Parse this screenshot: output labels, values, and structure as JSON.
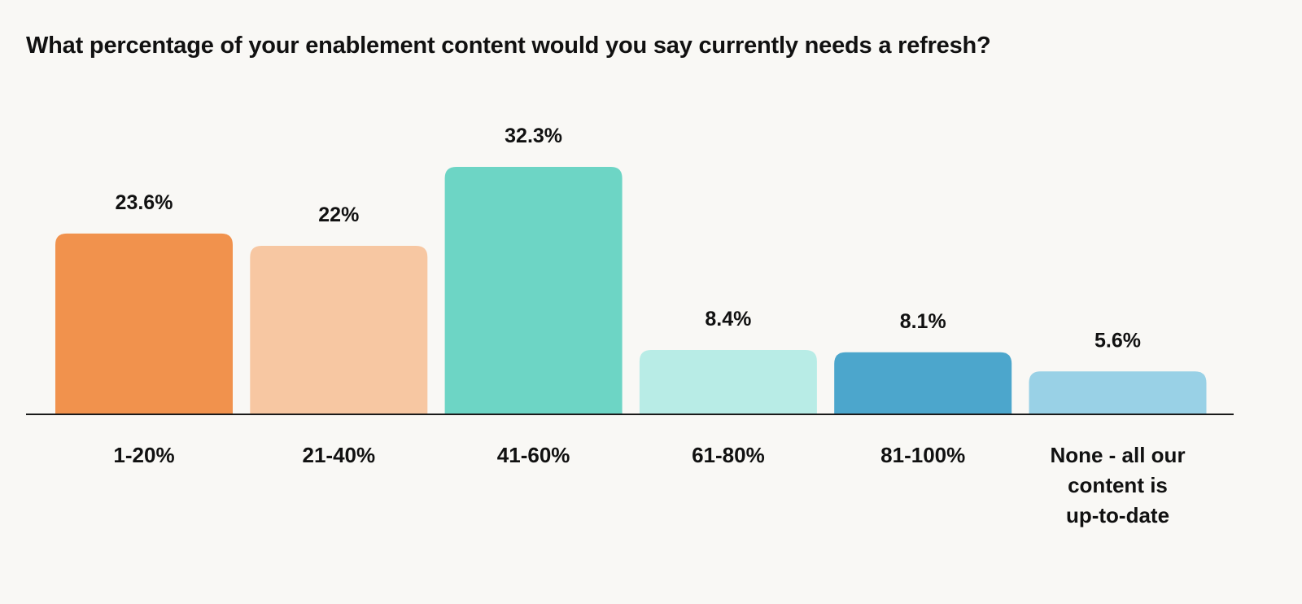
{
  "chart_data": {
    "type": "bar",
    "title": "What percentage of your enablement content would you say currently needs a refresh?",
    "categories": [
      "1-20%",
      "21-40%",
      "41-60%",
      "61-80%",
      "81-100%",
      "None - all our content is up-to-date"
    ],
    "category_lines": [
      [
        "1-20%"
      ],
      [
        "21-40%"
      ],
      [
        "41-60%"
      ],
      [
        "61-80%"
      ],
      [
        "81-100%"
      ],
      [
        "None - all our",
        "content is",
        "up-to-date"
      ]
    ],
    "values": [
      23.6,
      22,
      32.3,
      8.4,
      8.1,
      5.6
    ],
    "value_labels": [
      "23.6%",
      "22%",
      "32.3%",
      "8.4%",
      "8.1%",
      "5.6%"
    ],
    "bar_colors": [
      "#f1924d",
      "#f7c7a2",
      "#6dd5c5",
      "#b8ece6",
      "#4ca6cc",
      "#99d1e6"
    ],
    "ylim": [
      0,
      32.3
    ],
    "xlabel": "",
    "ylabel": "",
    "grid": false,
    "legend": "none"
  }
}
